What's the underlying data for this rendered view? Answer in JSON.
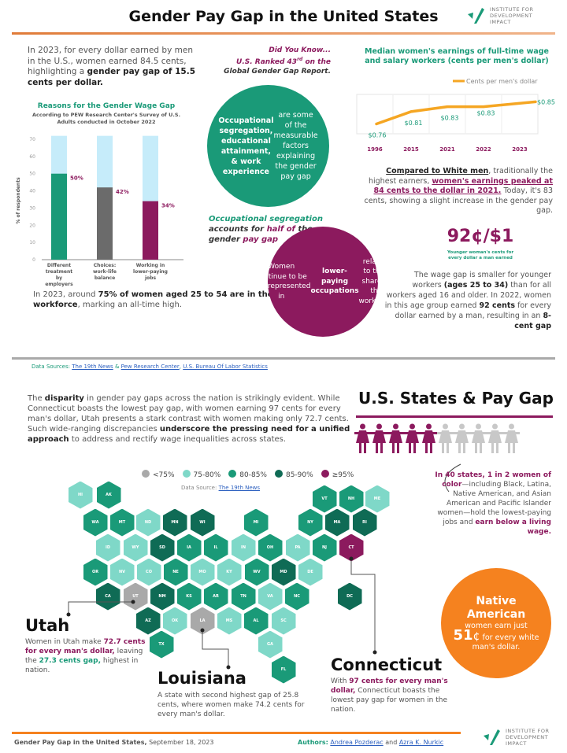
{
  "header": {
    "title": "Gender Pay Gap in the United States",
    "logo_text": "INSTITUTE FOR DEVELOPMENT IMPACT"
  },
  "colors": {
    "teal": "#1a9a78",
    "dark_teal": "#0f6b55",
    "light_teal": "#7fd8c8",
    "gray": "#a9a9a9",
    "magenta": "#8c1a5e",
    "orange": "#f5821f",
    "light_blue": "#c6ecfa"
  },
  "intro": [
    {
      "t": "In 2023, for every dollar earned by men in the U.S., women earned 84.5 cents, highlighting a "
    },
    {
      "t": "gender pay gap of 15.5 cents per dollar.",
      "b": true
    }
  ],
  "workforce": [
    {
      "t": "In 2023, around "
    },
    {
      "t": "75% of women aged 25 to 54 are in the workforce",
      "b": true
    },
    {
      "t": ", marking an all-time high."
    }
  ],
  "did_you_know": {
    "title": "Did You Know...",
    "line1": "U.S. Ranked 43",
    "sup": "rd",
    "line1b": " on the",
    "line2": "Global Gender Gap Report."
  },
  "teal_circle": [
    {
      "t": "Occupational segregation, educational attainment, & work experience",
      "b": true
    },
    {
      "t": " are some of the measurable factors explaining the gender pay gap"
    }
  ],
  "occ_seg": [
    {
      "t": "Occupational segregation",
      "c": "green"
    },
    {
      "t": " accounts for "
    },
    {
      "t": "half of",
      "c": "mag"
    },
    {
      "t": " the gender "
    },
    {
      "t": "pay gap",
      "c": "mag"
    }
  ],
  "magenta_circle": [
    {
      "t": "Women continue to be overrepresented in "
    },
    {
      "t": "lower-paying occupations",
      "b": true
    },
    {
      "t": " relative to their share of the workforce"
    }
  ],
  "compared": [
    {
      "t": "Compared to White men",
      "b": true,
      "u": true
    },
    {
      "t": ", traditionally the highest earners, "
    },
    {
      "t": "women's earnings peaked at 84 cents to the dollar in 2021.",
      "b": true,
      "c": "mag",
      "u": true
    },
    {
      "t": " Today, it's 83 cents, showing a slight increase in the gender pay gap."
    }
  ],
  "younger": {
    "big": "92¢/$1",
    "caption": "Younger woman's cents for every dollar a man earned"
  },
  "younger_text": [
    {
      "t": "The wage gap is smaller for younger workers "
    },
    {
      "t": "(ages 25 to 34)",
      "b": true
    },
    {
      "t": " than for all workers aged 16 and older. In 2022, women in this age group earned "
    },
    {
      "t": "92 cents",
      "b": true
    },
    {
      "t": " for every dollar earned by a man, resulting in an "
    },
    {
      "t": "8-cent gap",
      "b": true
    }
  ],
  "sources": {
    "label": "Data Sources:",
    "links": [
      "The 19th News",
      "Pew Research Center",
      "U.S. Bureau Of Labor Statistics"
    ],
    "amp": "&"
  },
  "disparity": [
    {
      "t": "The "
    },
    {
      "t": "disparity",
      "b": true
    },
    {
      "t": " in gender pay gaps across the nation is strikingly evident. While Connecticut boasts the lowest pay gap, with women earning 97 cents for every man's dollar, Utah presents a stark contrast with women making only 72.7 cents. Such wide-ranging discrepancies "
    },
    {
      "t": "underscore the pressing need for a unified approach",
      "b": true
    },
    {
      "t": " to address and rectify wage inequalities across states."
    }
  ],
  "states_title": "U.S. States & Pay Gap",
  "women_icons": {
    "highlighted": 5,
    "total": 10
  },
  "map": {
    "legend": [
      {
        "label": "<75%",
        "key": "gray"
      },
      {
        "label": "75-80%",
        "key": "light_teal"
      },
      {
        "label": "80-85%",
        "key": "teal"
      },
      {
        "label": "85-90%",
        "key": "dark_teal"
      },
      {
        "label": "≥95%",
        "key": "magenta"
      }
    ],
    "source_label": "Data Source:",
    "source_link": "The 19th News",
    "states": [
      {
        "s": "HI",
        "k": "light_teal"
      },
      {
        "s": "AK",
        "k": "teal"
      },
      {
        "s": "VT",
        "k": "teal"
      },
      {
        "s": "NH",
        "k": "teal"
      },
      {
        "s": "ME",
        "k": "light_teal"
      },
      {
        "s": "WA",
        "k": "teal"
      },
      {
        "s": "MT",
        "k": "teal"
      },
      {
        "s": "ND",
        "k": "light_teal"
      },
      {
        "s": "MN",
        "k": "dark_teal"
      },
      {
        "s": "WI",
        "k": "dark_teal"
      },
      {
        "s": "MI",
        "k": "teal"
      },
      {
        "s": "NY",
        "k": "teal"
      },
      {
        "s": "MA",
        "k": "dark_teal"
      },
      {
        "s": "RI",
        "k": "dark_teal"
      },
      {
        "s": "ID",
        "k": "light_teal"
      },
      {
        "s": "WY",
        "k": "light_teal"
      },
      {
        "s": "SD",
        "k": "dark_teal"
      },
      {
        "s": "IA",
        "k": "teal"
      },
      {
        "s": "IL",
        "k": "teal"
      },
      {
        "s": "IN",
        "k": "light_teal"
      },
      {
        "s": "OH",
        "k": "teal"
      },
      {
        "s": "PA",
        "k": "light_teal"
      },
      {
        "s": "NJ",
        "k": "teal"
      },
      {
        "s": "CT",
        "k": "magenta"
      },
      {
        "s": "OR",
        "k": "teal"
      },
      {
        "s": "NV",
        "k": "light_teal"
      },
      {
        "s": "CO",
        "k": "light_teal"
      },
      {
        "s": "NE",
        "k": "teal"
      },
      {
        "s": "MO",
        "k": "light_teal"
      },
      {
        "s": "KY",
        "k": "light_teal"
      },
      {
        "s": "WV",
        "k": "teal"
      },
      {
        "s": "MD",
        "k": "dark_teal"
      },
      {
        "s": "DE",
        "k": "light_teal"
      },
      {
        "s": "CA",
        "k": "dark_teal"
      },
      {
        "s": "UT",
        "k": "gray"
      },
      {
        "s": "NM",
        "k": "dark_teal"
      },
      {
        "s": "KS",
        "k": "teal"
      },
      {
        "s": "AR",
        "k": "teal"
      },
      {
        "s": "TN",
        "k": "teal"
      },
      {
        "s": "VA",
        "k": "light_teal"
      },
      {
        "s": "NC",
        "k": "teal"
      },
      {
        "s": "DC",
        "k": "dark_teal"
      },
      {
        "s": "AZ",
        "k": "dark_teal"
      },
      {
        "s": "OK",
        "k": "light_teal"
      },
      {
        "s": "LA",
        "k": "gray"
      },
      {
        "s": "MS",
        "k": "light_teal"
      },
      {
        "s": "AL",
        "k": "teal"
      },
      {
        "s": "SC",
        "k": "light_teal"
      },
      {
        "s": "TX",
        "k": "teal"
      },
      {
        "s": "GA",
        "k": "light_teal"
      },
      {
        "s": "FL",
        "k": "teal"
      }
    ]
  },
  "women_of_color": [
    {
      "t": "In 40 states, 1 in 2 women of color",
      "b": true,
      "c": "mag"
    },
    {
      "t": "—including Black, Latina, Native American, and Asian American and Pacific Islander women—hold the lowest-paying jobs and "
    },
    {
      "t": "earn below a living wage.",
      "b": true,
      "c": "mag"
    }
  ],
  "native": {
    "title": "Native American",
    "pre": "women earn just",
    "amount": "51",
    "unit": "¢",
    "post": " for every white man's dollar."
  },
  "utah": {
    "title": "Utah",
    "text": [
      {
        "t": "Women in Utah make "
      },
      {
        "t": "72.7 cents for every man's dollar,",
        "b": true,
        "c": "mag"
      },
      {
        "t": " leaving the "
      },
      {
        "t": "27.3 cents gap,",
        "b": true,
        "c": "green"
      },
      {
        "t": " highest in nation."
      }
    ]
  },
  "louisiana": {
    "title": "Louisiana",
    "text": [
      {
        "t": "A state with second highest gap of 25.8 cents, where women make 74.2 cents for every man's dollar."
      }
    ]
  },
  "connecticut": {
    "title": "Connecticut",
    "text": [
      {
        "t": "With "
      },
      {
        "t": "97 cents for every man's dollar,",
        "b": true,
        "c": "mag"
      },
      {
        "t": " Connecticut boasts the lowest pay gap for women in the nation."
      }
    ]
  },
  "footer": {
    "title": "Gender Pay Gap in the United States,",
    "date": " September 18, 2023",
    "authors_label": "Authors:",
    "author1": "Andrea Pozderac",
    "and": " and ",
    "author2": "Azra K. Nurkic"
  },
  "chart_data": [
    {
      "type": "bar",
      "title": "Reasons  for the Gender Wage Gap",
      "subtitle": "According to PEW Research Center's Survey of U.S. Adults conducted in October 2022",
      "ylabel": "% of respondents",
      "ylim": [
        0,
        70
      ],
      "yticks": [
        0,
        10,
        20,
        30,
        40,
        50,
        60,
        70
      ],
      "categories": [
        "Different treatment by employers",
        "Choices: work-life balance",
        "Working in lower-paying jobs"
      ],
      "values": [
        50,
        42,
        34
      ],
      "labels": [
        "50%",
        "42%",
        "34%"
      ],
      "bar_colors": [
        "#1a9a78",
        "#6b6b6b",
        "#8c1a5e"
      ],
      "background_color": "#c6ecfa"
    },
    {
      "type": "line",
      "title": "Median women's earnings of full-time wage and salary workers (cents per men's dollar)",
      "legend": "Cents per men's dollar",
      "legend_position": "top-right",
      "grid": true,
      "x": [
        "1996",
        "2015",
        "2021",
        "2022",
        "2023"
      ],
      "values": [
        0.76,
        0.81,
        0.83,
        0.83,
        0.85
      ],
      "labels": [
        "$0.76",
        "$0.81",
        "$0.83",
        "$0.83",
        "$0.85"
      ],
      "color": "#f5a623"
    }
  ]
}
